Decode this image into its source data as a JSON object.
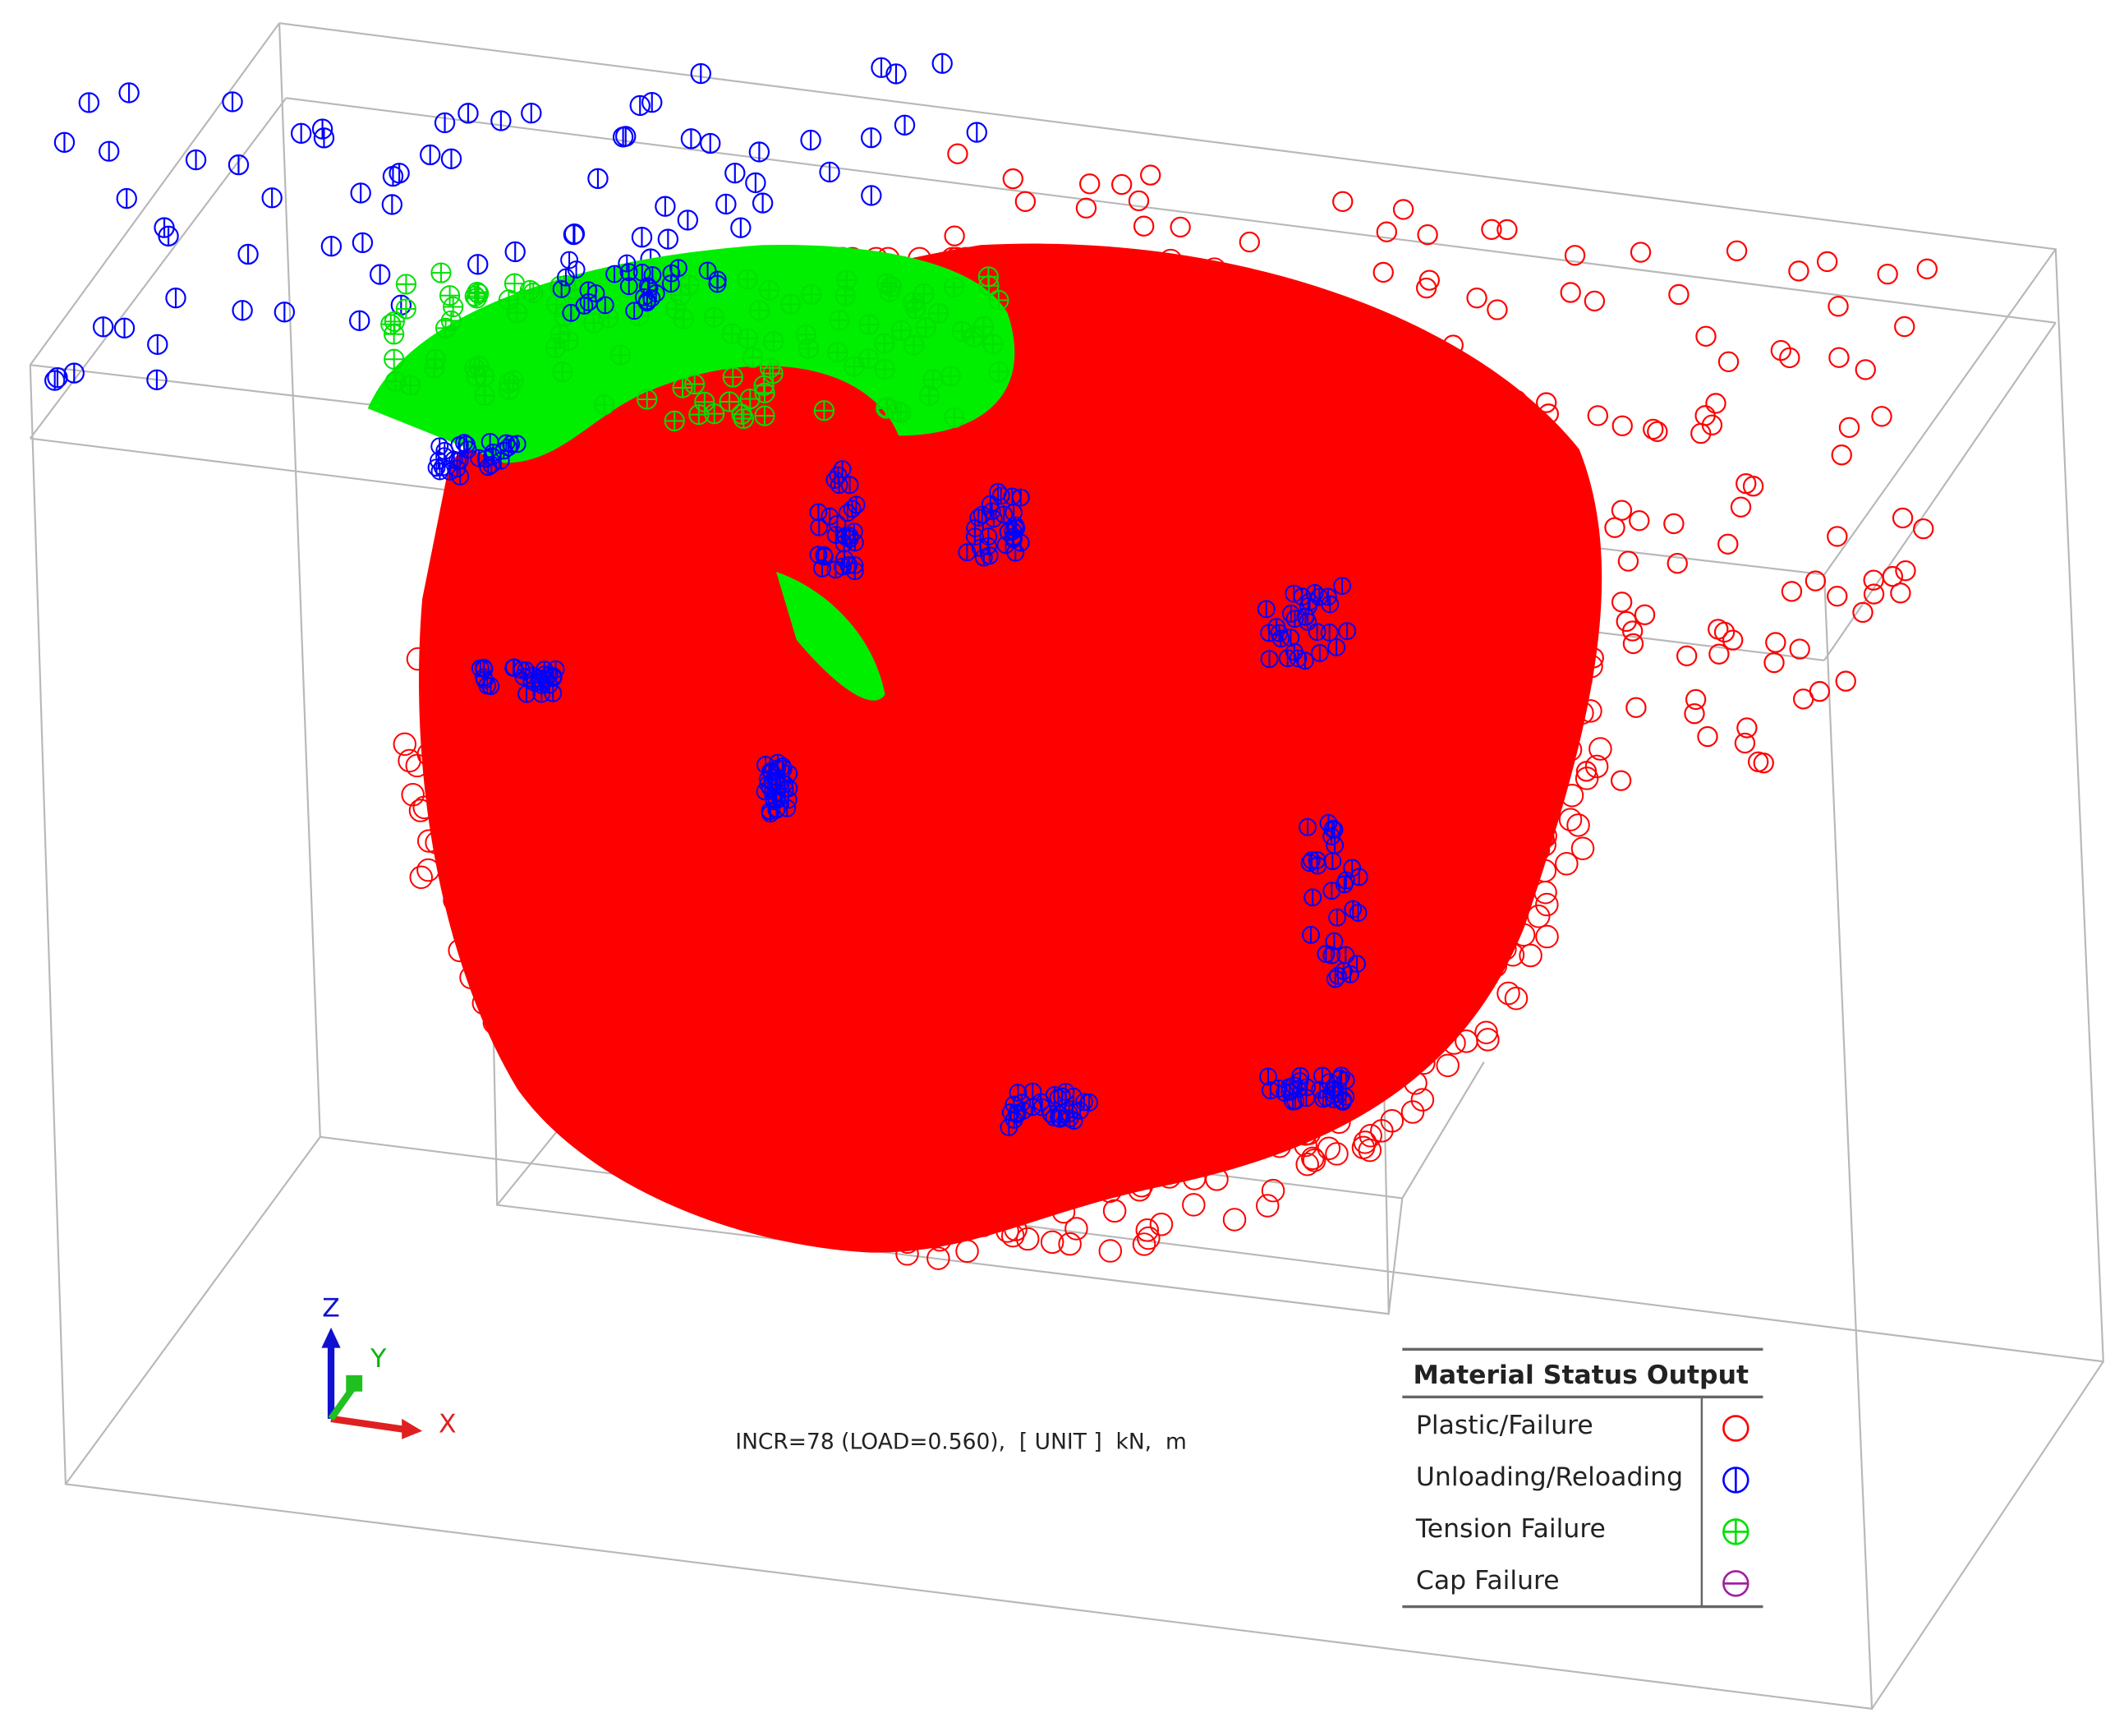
{
  "status_text": "INCR=78 (LOAD=0.560),  [ UNIT ]  kN,  m",
  "axes": {
    "x": "X",
    "y": "Y",
    "z": "Z"
  },
  "legend": {
    "title": "Material Status Output",
    "items": [
      {
        "label": "Plastic/Failure",
        "color": "#ff0000"
      },
      {
        "label": "Unloading/Reloading",
        "color": "#0000ff"
      },
      {
        "label": "Tension Failure",
        "color": "#00e000"
      },
      {
        "label": "Cap Failure",
        "color": "#a020a0"
      }
    ]
  }
}
